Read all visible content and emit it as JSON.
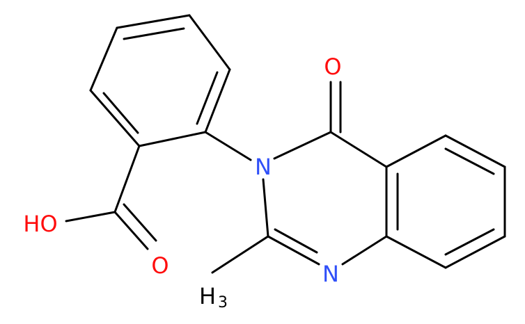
{
  "atoms": {
    "ketone_oxygen": "O",
    "ring_nitrogen_3": "N",
    "ring_nitrogen_1": "N",
    "hydroxyl": "HO",
    "acid_oxygen": "O",
    "methyl": "H",
    "methyl_subscript": "3"
  }
}
